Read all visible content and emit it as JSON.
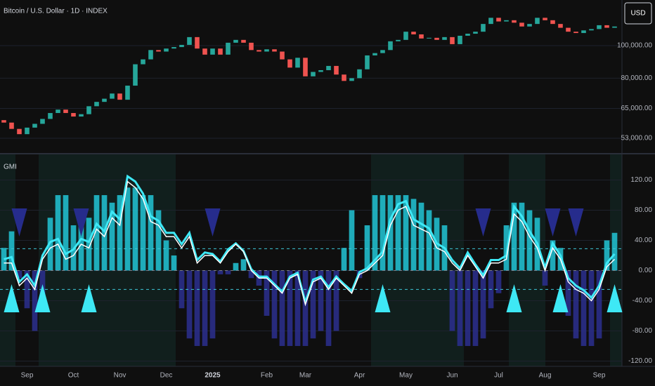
{
  "chart_data": [
    {
      "type": "candlestick",
      "title": "Bitcoin / U.S. Dollar · 1D · INDEX",
      "currency": "USD",
      "up_color": "#26a69a",
      "down_color": "#ef5350",
      "log": true,
      "grid": true,
      "ylim": [
        47900,
        136700
      ],
      "yticks": [
        {
          "value": 100000,
          "label": "100,000.00"
        },
        {
          "value": 80000,
          "label": "80,000.00"
        },
        {
          "value": 65000,
          "label": "65,000.00"
        },
        {
          "value": 53000,
          "label": "53,000.00"
        }
      ],
      "open": [
        60000,
        59000,
        56500,
        54500,
        57000,
        58500,
        60500,
        63000,
        64500,
        63000,
        61500,
        62500,
        66000,
        68000,
        69500,
        72000,
        69000,
        76000,
        88000,
        91000,
        97000,
        96000,
        98000,
        99000,
        100500,
        106000,
        98000,
        94000,
        98000,
        94000,
        102000,
        104000,
        102000,
        97000,
        96000,
        97500,
        96000,
        91000,
        86000,
        92000,
        81000,
        83500,
        84500,
        87000,
        82000,
        78500,
        80000,
        85000,
        93500,
        95000,
        97000,
        103000,
        104000,
        110000,
        108000,
        105000,
        105500,
        104000,
        106000,
        101000,
        107000,
        108500,
        110000,
        116000,
        121000,
        118000,
        119000,
        117000,
        114000,
        116000,
        121000,
        119000,
        116000,
        113000,
        110000,
        109000,
        111000,
        112000,
        115000,
        113000
      ],
      "close": [
        59000,
        56500,
        54500,
        57000,
        58500,
        60500,
        63000,
        64500,
        63000,
        61500,
        62500,
        66000,
        68000,
        69500,
        72000,
        69000,
        76000,
        88000,
        91000,
        97000,
        96000,
        98000,
        99000,
        100500,
        106000,
        98000,
        94000,
        98000,
        94000,
        102000,
        104000,
        102000,
        97000,
        96000,
        97500,
        96000,
        91000,
        86000,
        92000,
        81000,
        83500,
        84500,
        87000,
        82000,
        78500,
        80000,
        85000,
        93500,
        95000,
        97000,
        103000,
        104000,
        110000,
        108000,
        105000,
        105500,
        104000,
        106000,
        101000,
        107000,
        108500,
        110000,
        116000,
        121000,
        118000,
        119000,
        117000,
        114000,
        116000,
        121000,
        119000,
        116000,
        113000,
        110000,
        109000,
        111000,
        112000,
        115000,
        113000,
        114000
      ]
    },
    {
      "type": "combo",
      "title": "GMI",
      "grid": true,
      "categories": [
        null,
        null,
        null,
        "Sep",
        null,
        null,
        null,
        null,
        null,
        "Oct",
        null,
        null,
        null,
        null,
        null,
        "Nov",
        null,
        null,
        null,
        null,
        null,
        "Dec",
        null,
        null,
        null,
        null,
        null,
        "2025",
        null,
        null,
        null,
        null,
        null,
        null,
        "Feb",
        null,
        null,
        null,
        null,
        "Mar",
        null,
        null,
        null,
        null,
        null,
        null,
        "Apr",
        null,
        null,
        null,
        null,
        null,
        "May",
        null,
        null,
        null,
        null,
        null,
        "Jun",
        null,
        null,
        null,
        null,
        null,
        "Jul",
        null,
        null,
        null,
        null,
        null,
        "Aug",
        null,
        null,
        null,
        null,
        null,
        null,
        "Sep",
        null,
        null
      ],
      "ylim": [
        -127,
        154
      ],
      "yticks": [
        {
          "value": 120,
          "label": "120.00"
        },
        {
          "value": 80,
          "label": "80.00"
        },
        {
          "value": 40,
          "label": "40.00"
        },
        {
          "value": 0,
          "label": "0.00"
        },
        {
          "value": -40,
          "label": "-40.00"
        },
        {
          "value": -80,
          "label": "-80.00"
        },
        {
          "value": -120,
          "label": "-120.00"
        }
      ],
      "positive_color": "#22c6d6",
      "negative_color": "#2b2f8f",
      "values": [
        30,
        52,
        -10,
        -50,
        -80,
        -40,
        70,
        100,
        100,
        60,
        80,
        70,
        100,
        100,
        90,
        100,
        110,
        110,
        100,
        100,
        80,
        40,
        20,
        -50,
        -90,
        -100,
        -100,
        -90,
        -5,
        -5,
        10,
        15,
        -10,
        -20,
        -60,
        -90,
        -100,
        -100,
        -100,
        -100,
        -90,
        -80,
        -100,
        -80,
        30,
        80,
        -10,
        60,
        100,
        100,
        100,
        100,
        100,
        95,
        90,
        80,
        70,
        60,
        -80,
        -100,
        -100,
        -100,
        -90,
        -50,
        -30,
        60,
        90,
        90,
        80,
        70,
        -20,
        40,
        30,
        -60,
        -90,
        -100,
        -100,
        -90,
        40,
        50
      ],
      "series": [
        {
          "color": "#3ee8f5",
          "values": [
            15,
            18,
            -15,
            -5,
            -20,
            20,
            38,
            42,
            22,
            28,
            42,
            38,
            62,
            52,
            78,
            68,
            125,
            118,
            102,
            72,
            66,
            50,
            50,
            35,
            50,
            14,
            24,
            22,
            12,
            28,
            36,
            26,
            2,
            -8,
            -8,
            -18,
            -28,
            -8,
            -3,
            -42,
            -12,
            -8,
            -22,
            -8,
            -18,
            -27,
            -2,
            3,
            14,
            25,
            68,
            88,
            92,
            68,
            62,
            56,
            36,
            30,
            14,
            3,
            24,
            8,
            -6,
            14,
            14,
            20,
            85,
            72,
            52,
            36,
            4,
            36,
            20,
            -10,
            -20,
            -26,
            -36,
            -20,
            10,
            22
          ]
        },
        {
          "color": "#ffffff",
          "values": [
            10,
            10,
            -20,
            -10,
            -25,
            15,
            30,
            35,
            15,
            20,
            35,
            30,
            55,
            45,
            70,
            60,
            118,
            110,
            95,
            65,
            60,
            45,
            45,
            30,
            45,
            10,
            20,
            20,
            10,
            25,
            35,
            25,
            0,
            -10,
            -10,
            -20,
            -30,
            -10,
            -5,
            -45,
            -15,
            -10,
            -25,
            -10,
            -20,
            -30,
            -5,
            0,
            10,
            20,
            60,
            80,
            85,
            60,
            55,
            50,
            30,
            25,
            10,
            0,
            20,
            5,
            -10,
            10,
            10,
            15,
            75,
            65,
            45,
            30,
            0,
            30,
            15,
            -15,
            -25,
            -30,
            -40,
            -25,
            5,
            15
          ]
        }
      ],
      "levels": [
        29,
        -25
      ],
      "level_color": "#3ec6d6",
      "signals_up": [
        1,
        5,
        11,
        49,
        66,
        72,
        79
      ],
      "signal_up_color": "#3ee8f5",
      "signals_down": [
        2,
        10,
        27,
        62,
        71,
        74
      ],
      "signal_down_color": "#262c8c"
    }
  ]
}
